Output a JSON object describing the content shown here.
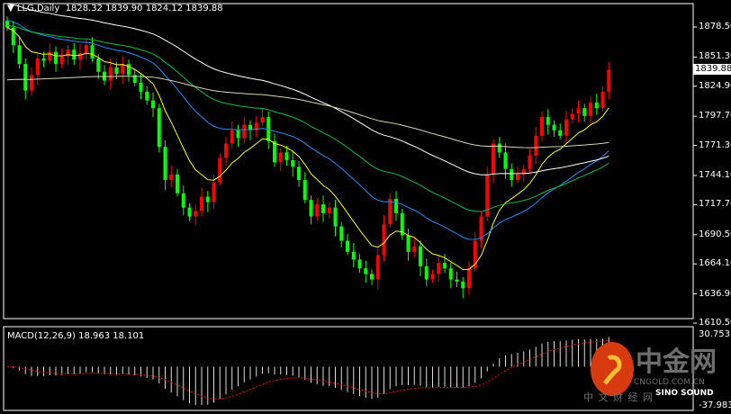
{
  "header": {
    "symbol": "LLG,Daily",
    "open": "1828.32",
    "high": "1839.90",
    "low": "1824.12",
    "close": "1839.88"
  },
  "price_axis": {
    "ticks": [
      "1878.50",
      "1851.30",
      "1824.90",
      "1797.70",
      "1771.30",
      "1744.10",
      "1717.70",
      "1690.50",
      "1664.10",
      "1636.90",
      "1610.50"
    ],
    "last_price": "1839.88"
  },
  "macd": {
    "label": "MACD(12,26,9) 18.963 18.101",
    "max": "30.753",
    "min": "-37.983"
  },
  "watermark": {
    "brand": "中金网",
    "site": "CNGOLD.COM.CN",
    "cn_sub": "中 文 财 经 网",
    "sino": "SINO SOUND"
  },
  "colors": {
    "up": "#ff0000",
    "down": "#00ff00",
    "ma_fast": "#ffff00",
    "ma_blue": "#1e90ff",
    "ma_green": "#00c040",
    "ma_white": "#ffffff",
    "ma_long": "#d8d8b0",
    "signal": "#ff0000"
  },
  "chart_data": {
    "type": "candlestick",
    "ylim": [
      1610.5,
      1878.5
    ],
    "closes": [
      1878,
      1862,
      1845,
      1821,
      1835,
      1850,
      1848,
      1856,
      1845,
      1852,
      1858,
      1849,
      1855,
      1862,
      1850,
      1838,
      1830,
      1842,
      1836,
      1845,
      1835,
      1828,
      1820,
      1812,
      1805,
      1770,
      1740,
      1745,
      1728,
      1715,
      1707,
      1712,
      1725,
      1720,
      1738,
      1760,
      1773,
      1785,
      1778,
      1790,
      1785,
      1792,
      1797,
      1775,
      1756,
      1765,
      1758,
      1752,
      1740,
      1722,
      1707,
      1718,
      1710,
      1715,
      1698,
      1685,
      1675,
      1668,
      1660,
      1655,
      1650,
      1672,
      1700,
      1723,
      1710,
      1690,
      1675,
      1680,
      1662,
      1650,
      1655,
      1665,
      1660,
      1650,
      1648,
      1642,
      1660,
      1685,
      1707,
      1745,
      1773,
      1765,
      1750,
      1740,
      1745,
      1750,
      1762,
      1780,
      1797,
      1790,
      1785,
      1780,
      1795,
      1800,
      1805,
      1798,
      1810,
      1805,
      1820,
      1839.88
    ]
  }
}
